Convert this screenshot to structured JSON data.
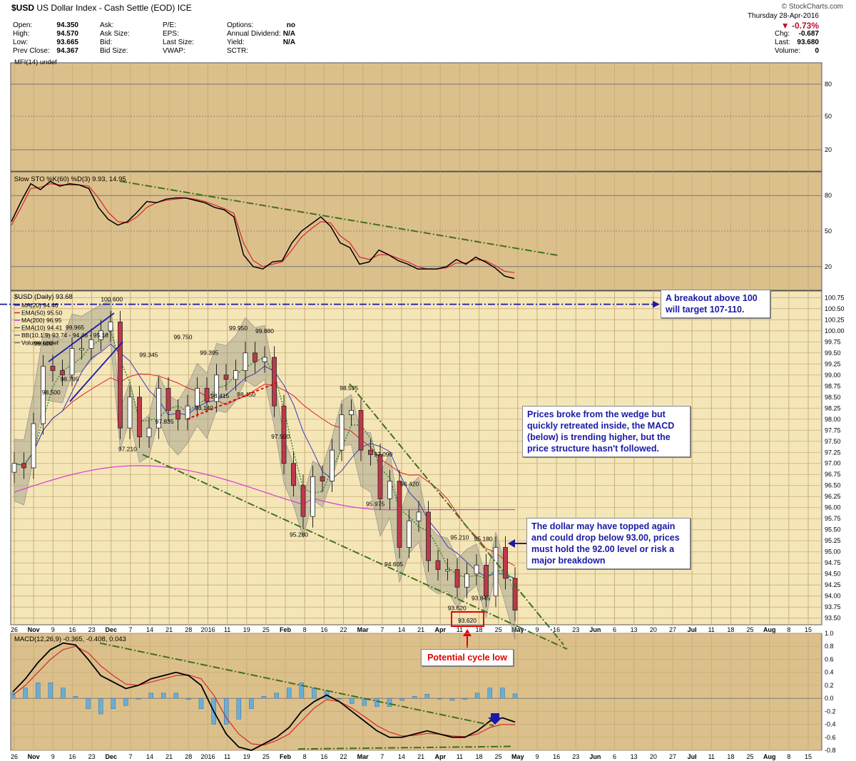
{
  "header": {
    "symbol": "$USD",
    "name": "US Dollar Index - Cash Settle (EOD)",
    "exchange": "ICE",
    "source": "© StockCharts.com",
    "date": "Thursday  28-Apr-2016",
    "change_pct": "▼ -0.73%",
    "quote_rows": [
      {
        "l1": "Open:",
        "v1": "94.350",
        "l2": "Ask:",
        "l3": "P/E:",
        "l4": "Options:",
        "v4": "no"
      },
      {
        "l1": "High:",
        "v1": "94.570",
        "l2": "Ask Size:",
        "l3": "EPS:",
        "l4": "Annual Dividend:",
        "v4": "N/A"
      },
      {
        "l1": "Low:",
        "v1": "93.665",
        "l2": "Bid:",
        "l3": "Last Size:",
        "l4": "Yield:",
        "v4": "N/A"
      },
      {
        "l1": "Prev Close:",
        "v1": "94.367",
        "l2": "Bid Size:",
        "l3": "VWAP:",
        "l4": "SCTR:",
        "v4": ""
      }
    ],
    "right_rows": [
      {
        "label": "Chg:",
        "value": "-0.687"
      },
      {
        "label": "Last:",
        "value": "93.680"
      },
      {
        "label": "Volume:",
        "value": "0"
      }
    ]
  },
  "colors": {
    "panel_bg": "#dcc08c",
    "price_bg": "#f5e6b8",
    "grid": "#c9ad7a",
    "price_line": "#000000",
    "ma20": "#3b3bbf",
    "ema50": "#d62728",
    "ma200": "#d63ad6",
    "ema10": "#2e8b2e",
    "bb_fill": "#9a9a86",
    "up_candle": "#ffffff",
    "down_candle": "#c0394b",
    "annot_blue": "#1a1aa6",
    "annot_green": "#3f6f1f",
    "annot_red": "#e00000",
    "hist": "#6aaed6"
  },
  "panels": {
    "mfi_label": "MFI(14) undef",
    "sto_label": "Slow STO %K(60) %D(3) 9.93, 14.95",
    "price_label": "$USD (Daily) 93.68",
    "macd_label": "MACD(12,26,9) -0.365, -0.408, 0.043",
    "legend": [
      {
        "name": "MA(20) 94.46",
        "color": "#3b3bbf"
      },
      {
        "name": "EMA(50) 95.50",
        "color": "#d62728"
      },
      {
        "name": "MA(200) 96.95",
        "color": "#d63ad6"
      },
      {
        "name": "EMA(10) 94.41",
        "color": "#2e8b2e"
      },
      {
        "name": "BB(10,1.9) 93.74 - 94.46 - 95.18",
        "color": "#777777"
      },
      {
        "name": "Volume undef",
        "color": "#777777"
      }
    ]
  },
  "chart_data": {
    "type": "candlestick",
    "title": "$USD US Dollar Index - Cash Settle (EOD) ICE",
    "x_axis_labels": [
      "26",
      "Nov",
      "9",
      "16",
      "23",
      "Dec",
      "7",
      "14",
      "21",
      "28",
      "2016",
      "11",
      "19",
      "25",
      "Feb",
      "8",
      "16",
      "22",
      "Mar",
      "7",
      "14",
      "21",
      "Apr",
      "11",
      "18",
      "25",
      "May",
      "9",
      "16",
      "23",
      "Jun",
      "6",
      "13",
      "20",
      "27",
      "Jul",
      "11",
      "18",
      "25",
      "Aug",
      "8",
      "15"
    ],
    "price_axis": {
      "ticks": [
        "100.75",
        "100.50",
        "100.25",
        "100.00",
        "99.75",
        "99.50",
        "99.25",
        "99.00",
        "98.75",
        "98.50",
        "98.25",
        "98.00",
        "97.75",
        "97.50",
        "97.25",
        "97.00",
        "96.75",
        "96.50",
        "96.25",
        "96.00",
        "95.75",
        "95.50",
        "95.25",
        "95.00",
        "94.75",
        "94.50",
        "94.25",
        "94.00",
        "93.75",
        "93.50"
      ],
      "ylim": [
        93.35,
        100.9
      ]
    },
    "price_series": [
      {
        "date": "Oct 26",
        "value": 97.0
      },
      {
        "date": "Oct 30",
        "value": 96.9
      },
      {
        "date": "Nov 3",
        "value": 97.9
      },
      {
        "date": "Nov 6",
        "value": 99.2
      },
      {
        "date": "Nov 10",
        "value": 99.1
      },
      {
        "date": "Nov 13",
        "value": 99.0
      },
      {
        "date": "Nov 17",
        "value": 99.6
      },
      {
        "date": "Nov 20",
        "value": 99.6
      },
      {
        "date": "Nov 24",
        "value": 99.8
      },
      {
        "date": "Nov 27",
        "value": 100.0
      },
      {
        "date": "Dec 1",
        "value": 100.2
      },
      {
        "date": "Dec 3",
        "value": 97.8
      },
      {
        "date": "Dec 7",
        "value": 98.5
      },
      {
        "date": "Dec 10",
        "value": 97.6
      },
      {
        "date": "Dec 14",
        "value": 97.8
      },
      {
        "date": "Dec 17",
        "value": 98.7
      },
      {
        "date": "Dec 21",
        "value": 98.2
      },
      {
        "date": "Dec 24",
        "value": 98.0
      },
      {
        "date": "Dec 28",
        "value": 98.3
      },
      {
        "date": "Jan 4",
        "value": 98.7
      },
      {
        "date": "Jan 7",
        "value": 98.4
      },
      {
        "date": "Jan 11",
        "value": 99.0
      },
      {
        "date": "Jan 14",
        "value": 98.9
      },
      {
        "date": "Jan 19",
        "value": 99.1
      },
      {
        "date": "Jan 22",
        "value": 99.5
      },
      {
        "date": "Jan 26",
        "value": 99.3
      },
      {
        "date": "Jan 29",
        "value": 99.4
      },
      {
        "date": "Feb 2",
        "value": 98.3
      },
      {
        "date": "Feb 4",
        "value": 97.0
      },
      {
        "date": "Feb 8",
        "value": 96.5
      },
      {
        "date": "Feb 11",
        "value": 95.8
      },
      {
        "date": "Feb 16",
        "value": 96.7
      },
      {
        "date": "Feb 19",
        "value": 96.6
      },
      {
        "date": "Feb 23",
        "value": 97.3
      },
      {
        "date": "Feb 26",
        "value": 98.1
      },
      {
        "date": "Mar 1",
        "value": 98.2
      },
      {
        "date": "Mar 4",
        "value": 97.3
      },
      {
        "date": "Mar 8",
        "value": 97.2
      },
      {
        "date": "Mar 11",
        "value": 96.2
      },
      {
        "date": "Mar 15",
        "value": 96.6
      },
      {
        "date": "Mar 18",
        "value": 95.1
      },
      {
        "date": "Mar 22",
        "value": 95.7
      },
      {
        "date": "Mar 25",
        "value": 95.9
      },
      {
        "date": "Mar 29",
        "value": 94.8
      },
      {
        "date": "Apr 1",
        "value": 94.6
      },
      {
        "date": "Apr 5",
        "value": 94.6
      },
      {
        "date": "Apr 8",
        "value": 94.2
      },
      {
        "date": "Apr 12",
        "value": 94.5
      },
      {
        "date": "Apr 15",
        "value": 94.7
      },
      {
        "date": "Apr 19",
        "value": 94.0
      },
      {
        "date": "Apr 22",
        "value": 95.1
      },
      {
        "date": "Apr 26",
        "value": 94.4
      },
      {
        "date": "Apr 28",
        "value": 93.68
      }
    ],
    "price_labels": [
      {
        "date": "Nov 6",
        "value": 99.6,
        "text": "99.600"
      },
      {
        "date": "Nov 9",
        "value": 98.5,
        "text": "98.500"
      },
      {
        "date": "Nov 16",
        "value": 98.795,
        "text": "98.795"
      },
      {
        "date": "Nov 18",
        "value": 99.965,
        "text": "99.965"
      },
      {
        "date": "Dec 2",
        "value": 100.6,
        "text": "100.600"
      },
      {
        "date": "Dec 8",
        "value": 97.21,
        "text": "97.210"
      },
      {
        "date": "Dec 16",
        "value": 99.345,
        "text": "99.345"
      },
      {
        "date": "Dec 22",
        "value": 97.835,
        "text": "97.835"
      },
      {
        "date": "Dec 29",
        "value": 99.75,
        "text": "99.750"
      },
      {
        "date": "Jan 6",
        "value": 98.14,
        "text": "98.140"
      },
      {
        "date": "Jan 8",
        "value": 99.395,
        "text": "99.395"
      },
      {
        "date": "Jan 12",
        "value": 98.415,
        "text": "98.415"
      },
      {
        "date": "Jan 19",
        "value": 99.95,
        "text": "99.950"
      },
      {
        "date": "Jan 22",
        "value": 98.45,
        "text": "98.450"
      },
      {
        "date": "Jan 29",
        "value": 99.88,
        "text": "99.880"
      },
      {
        "date": "Feb 4",
        "value": 97.5,
        "text": "97.500"
      },
      {
        "date": "Feb 11",
        "value": 95.28,
        "text": "95.280"
      },
      {
        "date": "Mar 1",
        "value": 98.595,
        "text": "98.595"
      },
      {
        "date": "Mar 14",
        "value": 97.09,
        "text": "97.090"
      },
      {
        "date": "Mar 11",
        "value": 95.975,
        "text": "95.975"
      },
      {
        "date": "Mar 24",
        "value": 96.42,
        "text": "96.420"
      },
      {
        "date": "Mar 18",
        "value": 94.605,
        "text": "94.605"
      },
      {
        "date": "Apr 12",
        "value": 95.21,
        "text": "95.210"
      },
      {
        "date": "Apr 21",
        "value": 95.18,
        "text": "95.180"
      },
      {
        "date": "Apr 20",
        "value": 93.845,
        "text": "93.845"
      },
      {
        "date": "Apr 11",
        "value": 93.62,
        "text": "93.620"
      }
    ],
    "mfi_axis": [
      "80",
      "50",
      "20"
    ],
    "sto_axis": [
      "80",
      "50",
      "20"
    ],
    "sto_k": [
      58,
      75,
      90,
      85,
      92,
      88,
      90,
      89,
      86,
      70,
      60,
      55,
      58,
      66,
      75,
      74,
      77,
      78,
      78,
      76,
      74,
      70,
      68,
      62,
      30,
      20,
      18,
      24,
      25,
      40,
      50,
      56,
      62,
      54,
      40,
      36,
      22,
      24,
      34,
      30,
      25,
      22,
      18,
      18,
      18,
      20,
      26,
      22,
      28,
      24,
      19,
      12,
      9.93
    ],
    "sto_d": [
      55,
      70,
      86,
      87,
      90,
      89,
      89,
      89,
      88,
      78,
      66,
      58,
      57,
      62,
      70,
      74,
      76,
      77,
      78,
      77,
      75,
      72,
      69,
      65,
      40,
      25,
      20,
      22,
      24,
      34,
      45,
      52,
      58,
      57,
      46,
      40,
      28,
      26,
      30,
      30,
      27,
      24,
      20,
      18,
      18,
      19,
      23,
      23,
      26,
      25,
      21,
      16,
      14.95
    ],
    "macd_axis": [
      "1.0",
      "0.8",
      "0.6",
      "0.4",
      "0.2",
      "0.0",
      "-0.2",
      "-0.4",
      "-0.6",
      "-0.8"
    ],
    "macd": [
      0.1,
      0.3,
      0.55,
      0.75,
      0.85,
      0.82,
      0.6,
      0.35,
      0.25,
      0.15,
      0.2,
      0.3,
      0.35,
      0.4,
      0.35,
      0.2,
      -0.2,
      -0.55,
      -0.75,
      -0.8,
      -0.7,
      -0.6,
      -0.45,
      -0.2,
      -0.05,
      0.05,
      -0.05,
      -0.2,
      -0.35,
      -0.5,
      -0.6,
      -0.6,
      -0.55,
      -0.5,
      -0.55,
      -0.6,
      -0.6,
      -0.5,
      -0.35,
      -0.3,
      -0.365
    ],
    "signal": [
      0.05,
      0.2,
      0.4,
      0.6,
      0.75,
      0.8,
      0.7,
      0.5,
      0.35,
      0.22,
      0.2,
      0.25,
      0.3,
      0.35,
      0.36,
      0.3,
      0.05,
      -0.3,
      -0.55,
      -0.7,
      -0.72,
      -0.65,
      -0.55,
      -0.35,
      -0.15,
      -0.02,
      -0.05,
      -0.15,
      -0.28,
      -0.42,
      -0.52,
      -0.58,
      -0.57,
      -0.54,
      -0.55,
      -0.58,
      -0.59,
      -0.55,
      -0.45,
      -0.4,
      -0.408
    ]
  },
  "annotations": {
    "breakout": "A breakout above 100 will target 107-110.",
    "wedge": "Prices broke from the wedge but quickly retreated inside, the MACD (below) is trending higher, but the price structure hasn't followed.",
    "topped": "The dollar may have topped again and could drop below 93.00, prices must hold the 92.00 level or risk a major breakdown",
    "cycle_low": "Potential cycle low",
    "cycle_low_value": "93.620"
  }
}
